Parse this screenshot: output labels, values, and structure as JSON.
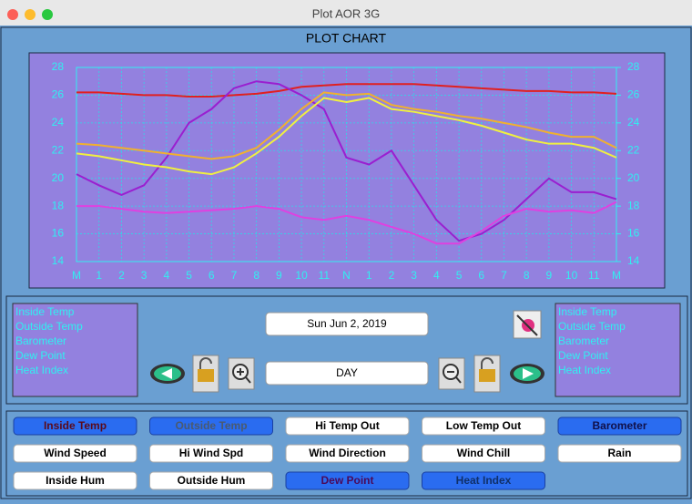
{
  "window": {
    "title": "Plot   AOR 3G"
  },
  "chart_data": {
    "type": "line",
    "title": "PLOT CHART",
    "categories": [
      "M",
      "1",
      "2",
      "3",
      "4",
      "5",
      "6",
      "7",
      "8",
      "9",
      "10",
      "11",
      "N",
      "1",
      "2",
      "3",
      "4",
      "5",
      "6",
      "7",
      "8",
      "9",
      "10",
      "11",
      "M"
    ],
    "ylim": [
      14,
      28
    ],
    "yticks": [
      14,
      16,
      18,
      20,
      22,
      24,
      26,
      28
    ],
    "y2lim": [
      14,
      28
    ],
    "y2ticks": [
      14,
      16,
      18,
      20,
      22,
      24,
      26,
      28
    ],
    "grid": true,
    "series": [
      {
        "name": "Inside Temp",
        "color": "#e02020",
        "values": [
          26.2,
          26.2,
          26.1,
          26.0,
          26.0,
          25.9,
          25.9,
          26.0,
          26.1,
          26.3,
          26.6,
          26.7,
          26.8,
          26.8,
          26.8,
          26.8,
          26.7,
          26.6,
          26.5,
          26.4,
          26.3,
          26.3,
          26.2,
          26.2,
          26.1
        ]
      },
      {
        "name": "Outside Temp",
        "color": "#9a1fd0",
        "values": [
          20.3,
          19.5,
          18.8,
          19.5,
          21.5,
          24.0,
          25.0,
          26.5,
          27.0,
          26.8,
          26.0,
          25.0,
          21.5,
          21.0,
          22.0,
          19.5,
          17.0,
          15.5,
          16.0,
          17.0,
          18.5,
          20.0,
          19.0,
          19.0,
          18.5
        ]
      },
      {
        "name": "Barometer",
        "color": "#f0b030",
        "values": [
          22.5,
          22.4,
          22.2,
          22.0,
          21.8,
          21.6,
          21.4,
          21.6,
          22.2,
          23.5,
          25.0,
          26.2,
          26.0,
          26.1,
          25.3,
          25.0,
          24.8,
          24.5,
          24.3,
          24.0,
          23.7,
          23.3,
          23.0,
          23.0,
          22.2
        ]
      },
      {
        "name": "Dew Point",
        "color": "#e040e0",
        "values": [
          18.0,
          18.0,
          17.8,
          17.6,
          17.5,
          17.6,
          17.7,
          17.8,
          18.0,
          17.8,
          17.2,
          17.0,
          17.3,
          17.0,
          16.5,
          16.0,
          15.3,
          15.3,
          16.2,
          17.3,
          17.8,
          17.6,
          17.7,
          17.5,
          18.3
        ]
      },
      {
        "name": "Heat Index",
        "color": "#f0f040",
        "values": [
          21.8,
          21.6,
          21.3,
          21.0,
          20.8,
          20.5,
          20.3,
          20.8,
          21.8,
          23.0,
          24.5,
          25.8,
          25.5,
          25.8,
          25.0,
          24.8,
          24.5,
          24.2,
          23.8,
          23.3,
          22.8,
          22.5,
          22.5,
          22.2,
          21.5
        ]
      }
    ]
  },
  "controls": {
    "date": "Sun Jun 2, 2019",
    "period": "DAY"
  },
  "buttons": [
    {
      "label": "Inside Temp",
      "active": true,
      "text_color": "#5a0a1a"
    },
    {
      "label": "Outside Temp",
      "active": true,
      "text_color": "#4a5a70"
    },
    {
      "label": "Hi Temp Out",
      "active": false,
      "text_color": "#000000"
    },
    {
      "label": "Low Temp Out",
      "active": false,
      "text_color": "#000000"
    },
    {
      "label": "Barometer",
      "active": true,
      "text_color": "#10104a"
    },
    {
      "label": "Wind Speed",
      "active": false,
      "text_color": "#000000"
    },
    {
      "label": "Hi Wind Spd",
      "active": false,
      "text_color": "#000000"
    },
    {
      "label": "Wind Direction",
      "active": false,
      "text_color": "#000000"
    },
    {
      "label": "Wind Chill",
      "active": false,
      "text_color": "#000000"
    },
    {
      "label": "Rain",
      "active": false,
      "text_color": "#000000"
    },
    {
      "label": "Inside Hum",
      "active": false,
      "text_color": "#000000"
    },
    {
      "label": "Outside Hum",
      "active": false,
      "text_color": "#000000"
    },
    {
      "label": "Dew Point",
      "active": true,
      "text_color": "#4a0a5a"
    },
    {
      "label": "Heat Index",
      "active": true,
      "text_color": "#10306a"
    }
  ]
}
